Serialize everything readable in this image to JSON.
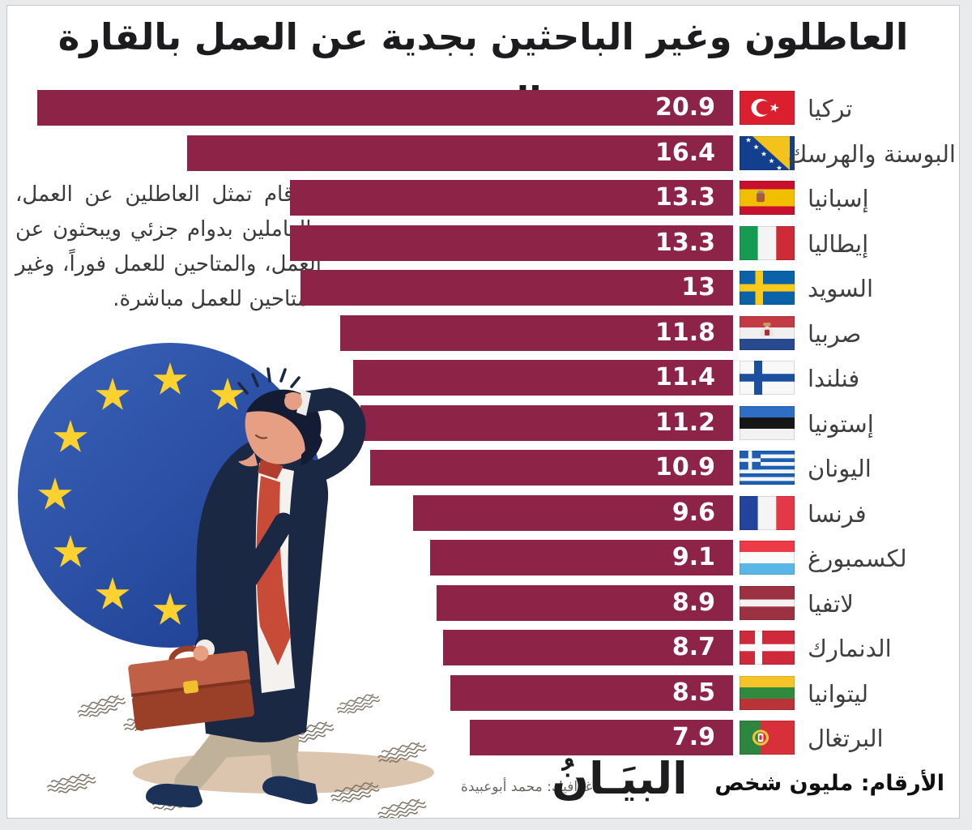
{
  "title": "العاطلون وغير الباحثين بجدية عن العمل بالقارة العجوز",
  "annotation": "الأرقام تمثل العاطلين عن العمل، والعاملين بدوام جزئي ويبحثون عن العمل، والمتاحين للعمل فوراً، وغير المتاحين للعمل مباشرة.",
  "chart_data": {
    "type": "bar",
    "orientation": "horizontal",
    "sort": "descending",
    "title": "العاطلون وغير الباحثين بجدية عن العمل بالقارة العجوز",
    "unit": "مليون شخص",
    "categories": [
      "تركيا",
      "البوسنة والهرسك",
      "إسبانيا",
      "إيطاليا",
      "السويد",
      "صربيا",
      "فنلندا",
      "إستونيا",
      "اليونان",
      "فرنسا",
      "لكسمبورغ",
      "لاتفيا",
      "الدنمارك",
      "ليتوانيا",
      "البرتغال"
    ],
    "values": [
      20.9,
      16.4,
      13.3,
      13.3,
      13,
      11.8,
      11.4,
      11.2,
      10.9,
      9.6,
      9.1,
      8.9,
      8.7,
      8.5,
      7.9
    ],
    "flag_codes": [
      "tr",
      "ba",
      "es",
      "it",
      "se",
      "rs",
      "fi",
      "ee",
      "gr",
      "fr",
      "lu",
      "lv",
      "dk",
      "lt",
      "pt"
    ],
    "value_labels_inside_bars": true,
    "xlim": [
      0,
      20.9
    ],
    "grid": false,
    "legend": false,
    "bar_color": "#8e2348"
  },
  "footer": {
    "units_label": "الأرقام: مليون شخص",
    "credit": "غرافيك: محمد أبوعبيدة",
    "logo": "البيَـانُ"
  },
  "colors": {
    "bar": "#8e2348",
    "eu_blue": "#2b4fa3",
    "star_yellow": "#fdd130",
    "card_background": "#ffffff",
    "frame_background": "#e9eaec",
    "bar_value_text": "#ffffff",
    "label_text": "#3f3f3f"
  }
}
